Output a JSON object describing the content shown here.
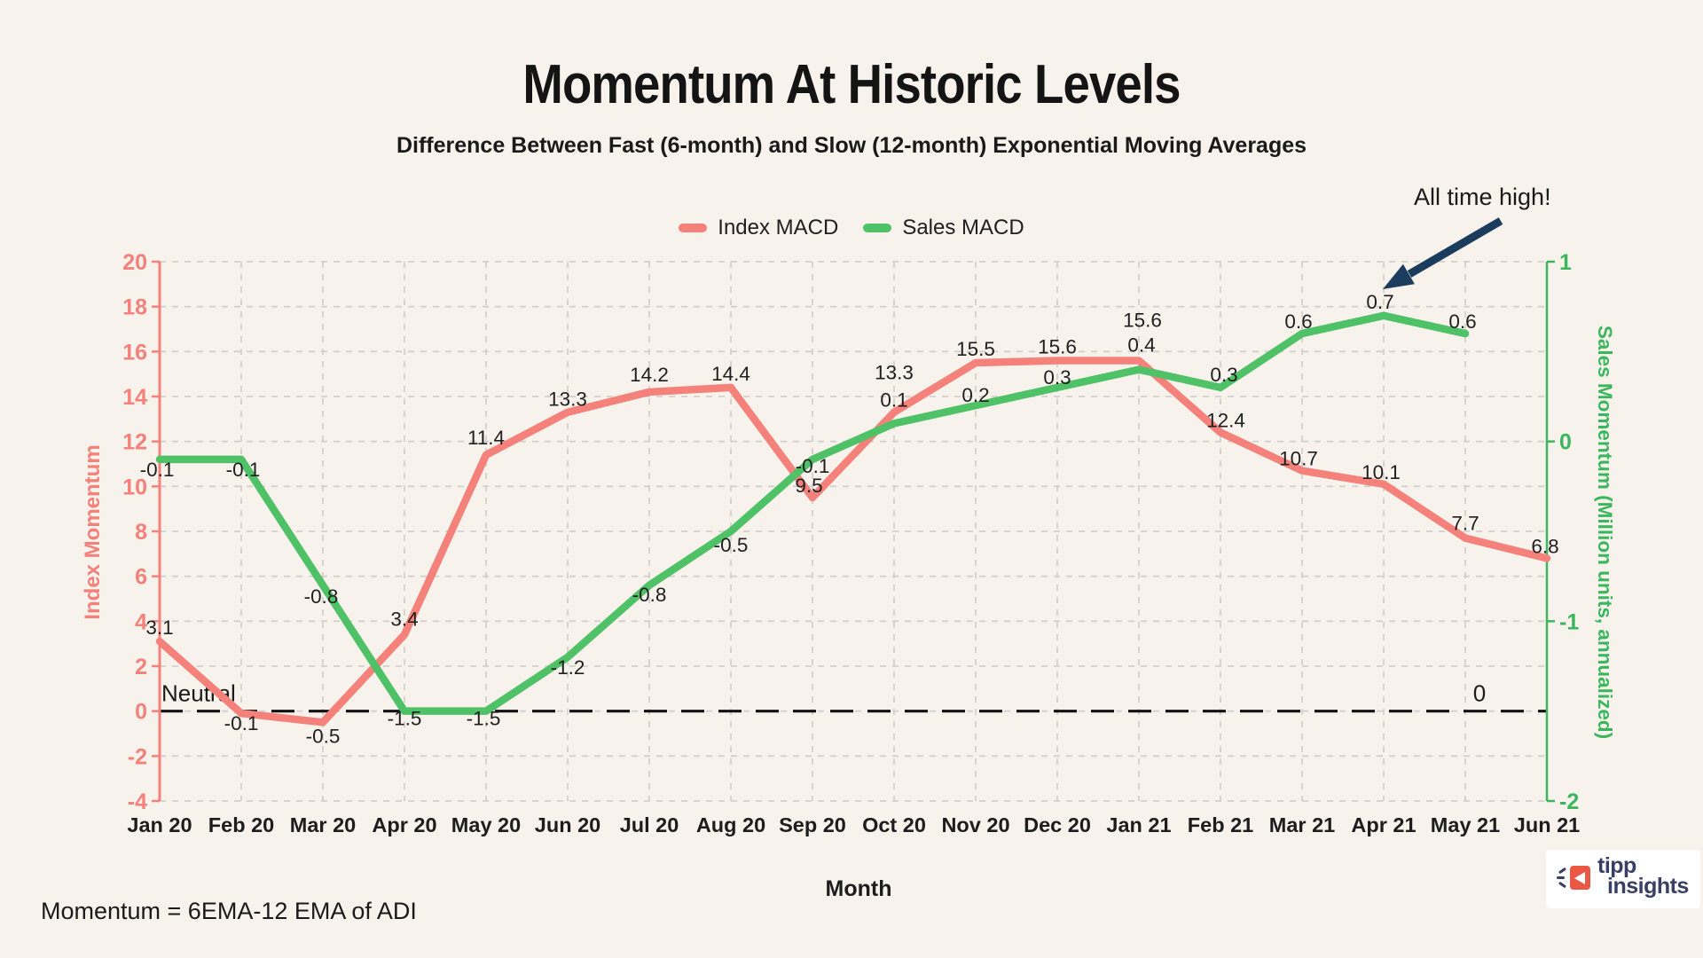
{
  "title": "Momentum At Historic Levels",
  "subtitle": "Difference Between Fast (6-month) and Slow (12-month) Exponential Moving Averages",
  "annotation": "All time high!",
  "footnote": "Momentum = 6EMA-12 EMA of ADI",
  "logo": {
    "word1": "tipp",
    "word2": "insights"
  },
  "colors": {
    "background": "#f8f2ed",
    "index_red": "#f4817a",
    "sales_green": "#4fc167",
    "green_text": "#3ab75c",
    "grid": "#d2d0cd",
    "text": "#1a1a1a",
    "neutral_line": "#111111",
    "arrow_navy": "#1c3c5e",
    "logo_navy": "#393e65",
    "logo_red": "#eb5745"
  },
  "chart_data": {
    "type": "line",
    "categories": [
      "Jan 20",
      "Feb 20",
      "Mar 20",
      "Apr 20",
      "May 20",
      "Jun 20",
      "Jul 20",
      "Aug 20",
      "Sep 20",
      "Oct 20",
      "Nov 20",
      "Dec 20",
      "Jan 21",
      "Feb 21",
      "Mar 21",
      "Apr 21",
      "May 21",
      "Jun 21"
    ],
    "series": [
      {
        "name": "Index MACD",
        "axis": "left",
        "color": "#f4817a",
        "values": [
          3.1,
          -0.1,
          -0.5,
          3.4,
          11.4,
          13.3,
          14.2,
          14.4,
          9.5,
          13.3,
          15.5,
          15.6,
          15.6,
          12.4,
          10.7,
          10.1,
          7.7,
          6.8
        ]
      },
      {
        "name": "Sales MACD",
        "axis": "right",
        "color": "#4fc167",
        "values": [
          -0.1,
          -0.1,
          -0.8,
          -1.5,
          -1.5,
          -1.2,
          -0.8,
          -0.5,
          -0.1,
          0.1,
          0.2,
          0.3,
          0.4,
          0.3,
          0.6,
          0.7,
          0.6,
          null
        ]
      }
    ],
    "xlabel": "Month",
    "left_axis": {
      "label": "Index Momentum",
      "min": -4,
      "max": 20,
      "tick_step": 2
    },
    "right_axis": {
      "label": "Sales Momentum (Million units, annualized)",
      "min": -2,
      "max": 1,
      "tick_step": 1
    },
    "reference_line": {
      "value": 0,
      "label": "Neutral",
      "value_label": "0"
    },
    "grid": true,
    "legend_position": "top"
  }
}
